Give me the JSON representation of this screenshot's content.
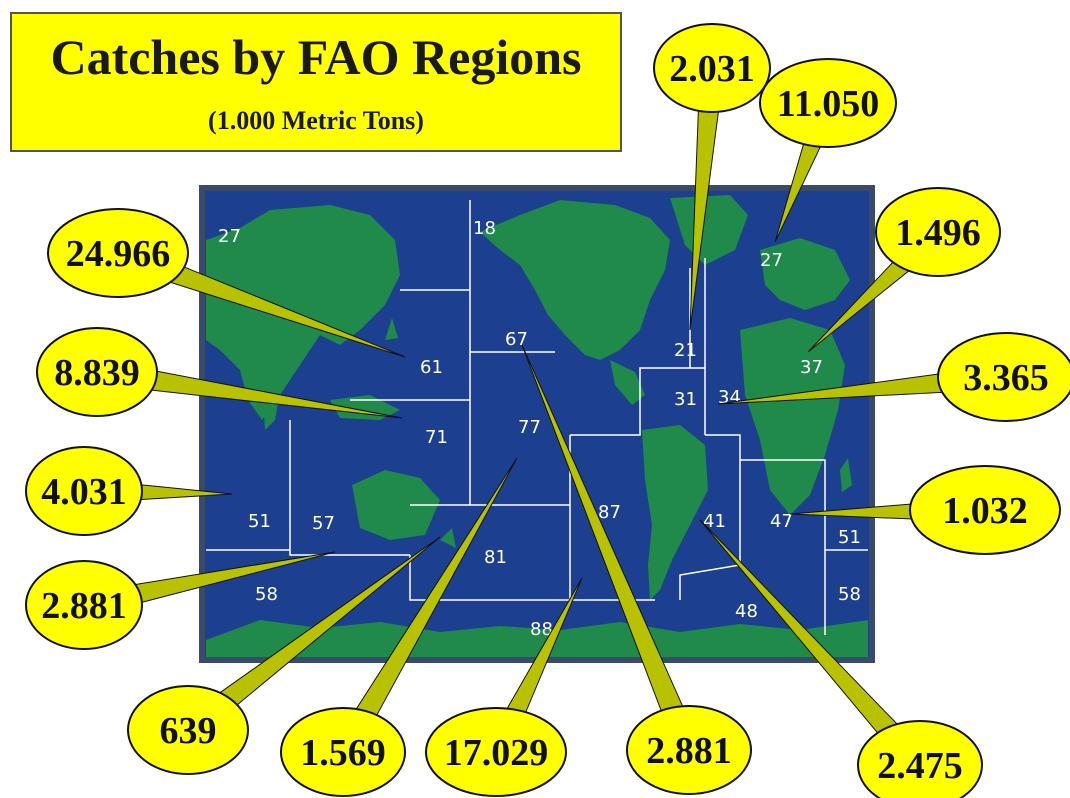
{
  "title": "Catches by FAO Regions",
  "subtitle": "(1.000 Metric Tons)",
  "colors": {
    "ocean": "#1c3f8f",
    "land": "#1f8a4a",
    "callout": "#ffff00",
    "frame": "#3a4a6a"
  },
  "map": {
    "zones": [
      "27",
      "18",
      "27",
      "21",
      "61",
      "67",
      "37",
      "31",
      "34",
      "71",
      "77",
      "51",
      "57",
      "87",
      "41",
      "47",
      "51",
      "81",
      "58",
      "88",
      "48",
      "58"
    ]
  },
  "callouts": [
    {
      "value": "2.031",
      "zone": "21"
    },
    {
      "value": "11.050",
      "zone": "27"
    },
    {
      "value": "1.496",
      "zone": "37"
    },
    {
      "value": "24.966",
      "zone": "61"
    },
    {
      "value": "8.839",
      "zone": "71"
    },
    {
      "value": "3.365",
      "zone": "34"
    },
    {
      "value": "4.031",
      "zone": "51"
    },
    {
      "value": "1.032",
      "zone": "47"
    },
    {
      "value": "2.881",
      "zone": "57"
    },
    {
      "value": "639",
      "zone": "81"
    },
    {
      "value": "1.569",
      "zone": "77"
    },
    {
      "value": "17.029",
      "zone": "87"
    },
    {
      "value": "2.881",
      "zone": "67"
    },
    {
      "value": "2.475",
      "zone": "41"
    }
  ]
}
